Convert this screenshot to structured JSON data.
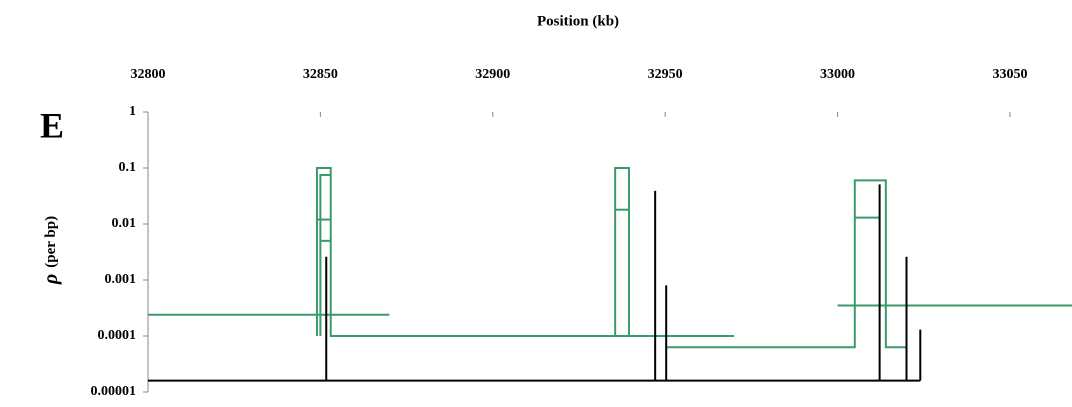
{
  "chart_data": {
    "type": "step",
    "panel_label": "E",
    "x_label": "Position (kb)",
    "y_label": {
      "symbol": "ρ",
      "unit": "(per bp)"
    },
    "xlim": [
      32800,
      33068
    ],
    "xticks": [
      32800,
      32850,
      32900,
      32950,
      33000,
      33050
    ],
    "ylim": [
      1e-05,
      1
    ],
    "yticks": [
      1,
      0.1,
      0.01,
      0.001,
      0.0001,
      1e-05
    ],
    "log_y": true,
    "series": [
      {
        "color": "#3a9a6a",
        "x": [
          32800,
          32870
        ],
        "values": [
          0.00024,
          0.00024
        ]
      },
      {
        "color": "#3a9a6a",
        "x": [
          32849,
          32849,
          32853,
          32853,
          32970
        ],
        "values": [
          0.0001,
          0.1,
          0.1,
          0.0001,
          0.0001
        ]
      },
      {
        "color": "#3a9a6a",
        "x": [
          32849,
          32853
        ],
        "values": [
          0.012,
          0.012
        ]
      },
      {
        "color": "#3a9a6a",
        "x": [
          32850,
          32850,
          32853
        ],
        "values": [
          0.0001,
          0.075,
          0.075
        ]
      },
      {
        "color": "#3a9a6a",
        "x": [
          32850,
          32853
        ],
        "values": [
          0.005,
          0.005
        ]
      },
      {
        "color": "#3a9a6a",
        "x": [
          32935.5,
          32935.5,
          32939.5,
          32939.5
        ],
        "values": [
          0.0001,
          0.1,
          0.1,
          0.0001
        ]
      },
      {
        "color": "#3a9a6a",
        "x": [
          32935.5,
          32939.5
        ],
        "values": [
          0.018,
          0.018
        ]
      },
      {
        "color": "#3a9a6a",
        "x": [
          32950,
          33005,
          33005,
          33014,
          33014,
          33020
        ],
        "values": [
          6.3e-05,
          6.3e-05,
          0.06,
          0.06,
          6.3e-05,
          6.3e-05
        ]
      },
      {
        "color": "#3a9a6a",
        "x": [
          33005,
          33012
        ],
        "values": [
          0.013,
          0.013
        ]
      },
      {
        "color": "#3a9a6a",
        "x": [
          33000,
          33068
        ],
        "values": [
          0.00035,
          0.00035
        ]
      },
      {
        "color": "#000000",
        "x": [
          32800,
          33024
        ],
        "values": [
          1.6e-05,
          1.6e-05
        ]
      }
    ],
    "spikes": {
      "color": "#000000",
      "x": [
        32851.7,
        32947.1,
        32950.3,
        33012.2,
        33020,
        33024
      ],
      "values": [
        0.0026,
        0.039,
        0.0008,
        0.051,
        0.0026,
        0.00013
      ]
    }
  }
}
